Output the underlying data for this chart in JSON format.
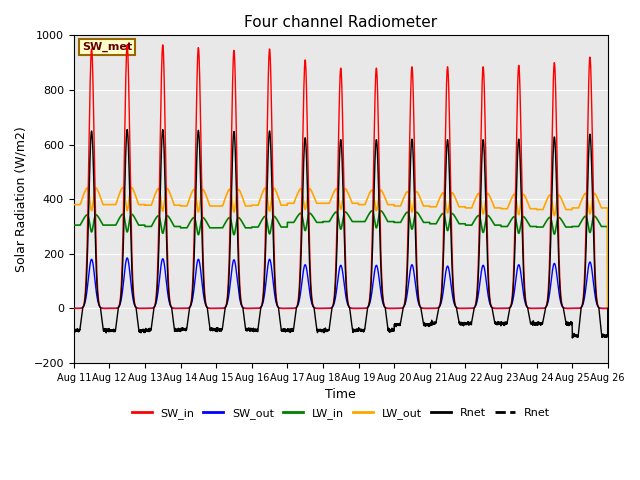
{
  "title": "Four channel Radiometer",
  "xlabel": "Time",
  "ylabel": "Solar Radiation (W/m2)",
  "ylim": [
    -200,
    1000
  ],
  "bg_color": "#e8e8e8",
  "annotation_text": "SW_met",
  "annotation_bg": "#ffffcc",
  "annotation_border": "#996600",
  "legend_entries": [
    "SW_in",
    "SW_out",
    "LW_in",
    "LW_out",
    "Rnet",
    "Rnet"
  ],
  "legend_colors": [
    "red",
    "blue",
    "green",
    "orange",
    "black",
    "black"
  ],
  "legend_styles": [
    "-",
    "-",
    "-",
    "-",
    "-",
    "--"
  ],
  "n_days": 15,
  "x_tick_labels": [
    "Aug 11",
    "Aug 12",
    "Aug 13",
    "Aug 14",
    "Aug 15",
    "Aug 16",
    "Aug 17",
    "Aug 18",
    "Aug 19",
    "Aug 20",
    "Aug 21",
    "Aug 22",
    "Aug 23",
    "Aug 24",
    "Aug 25",
    "Aug 26"
  ],
  "SW_in_peak": [
    950,
    965,
    965,
    955,
    945,
    950,
    910,
    880,
    880,
    885,
    885,
    885,
    890,
    900,
    920
  ],
  "SW_out_peak": [
    180,
    185,
    182,
    180,
    178,
    180,
    160,
    158,
    158,
    160,
    155,
    158,
    160,
    165,
    170
  ],
  "LW_in_base": [
    305,
    305,
    300,
    295,
    295,
    298,
    315,
    318,
    318,
    315,
    310,
    305,
    300,
    298,
    300
  ],
  "LW_in_peak": [
    355,
    358,
    352,
    345,
    345,
    350,
    360,
    365,
    370,
    365,
    360,
    352,
    348,
    345,
    350
  ],
  "LW_in_dip": [
    280,
    280,
    275,
    270,
    270,
    273,
    285,
    290,
    295,
    290,
    285,
    278,
    275,
    272,
    278
  ],
  "LW_out_base": [
    380,
    380,
    378,
    375,
    375,
    378,
    385,
    385,
    380,
    375,
    372,
    368,
    365,
    362,
    368
  ],
  "LW_out_peak": [
    460,
    462,
    458,
    455,
    455,
    460,
    455,
    455,
    450,
    445,
    440,
    438,
    435,
    432,
    438
  ],
  "LW_out_dip": [
    358,
    358,
    356,
    353,
    353,
    356,
    363,
    363,
    358,
    353,
    350,
    346,
    343,
    340,
    346
  ],
  "Rnet_peak": [
    650,
    655,
    655,
    652,
    648,
    650,
    625,
    618,
    618,
    620,
    618,
    618,
    620,
    628,
    638
  ],
  "Rnet_night": [
    -80,
    -82,
    -80,
    -78,
    -78,
    -80,
    -80,
    -80,
    -80,
    -60,
    -55,
    -55,
    -55,
    -55,
    -100
  ]
}
